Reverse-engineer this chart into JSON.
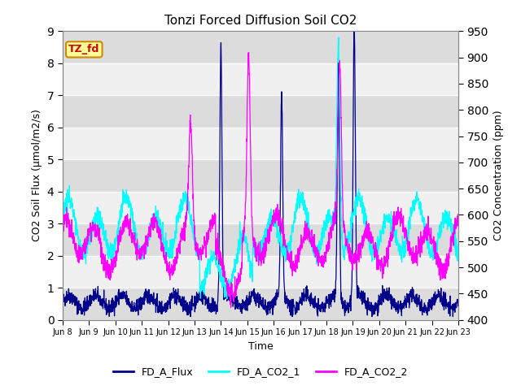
{
  "title": "Tonzi Forced Diffusion Soil CO2",
  "xlabel": "Time",
  "ylabel_left": "CO2 Soil Flux (μmol/m2/s)",
  "ylabel_right": "CO2 Concentration (ppm)",
  "ylim_left": [
    0.0,
    9.0
  ],
  "ylim_right": [
    400,
    950
  ],
  "yticks_left": [
    0.0,
    1.0,
    2.0,
    3.0,
    4.0,
    5.0,
    6.0,
    7.0,
    8.0,
    9.0
  ],
  "yticks_right": [
    400,
    450,
    500,
    550,
    600,
    650,
    700,
    750,
    800,
    850,
    900,
    950
  ],
  "xtick_labels": [
    "Jun 8",
    "Jun 9",
    "Jun 10",
    "Jun 11",
    "Jun 12",
    "Jun 13",
    "Jun 14",
    "Jun 15",
    "Jun 16",
    "Jun 17",
    "Jun 18",
    "Jun 19",
    "Jun 20",
    "Jun 21",
    "Jun 22",
    "Jun 23"
  ],
  "color_flux": "#00008B",
  "color_co2_1": "#00FFFF",
  "color_co2_2": "#FF00FF",
  "legend_label_flux": "FD_A_Flux",
  "legend_label_co2_1": "FD_A_CO2_1",
  "legend_label_co2_2": "FD_A_CO2_2",
  "tag_text": "TZ_fd",
  "tag_bg": "#FFFF99",
  "tag_border": "#CC8800",
  "tag_text_color": "#CC0000",
  "background_color": "#FFFFFF",
  "plot_bg_dark": "#DCDCDC",
  "plot_bg_light": "#F0F0F0",
  "grid_color": "#FFFFFF",
  "n_points": 2000,
  "seed": 42
}
